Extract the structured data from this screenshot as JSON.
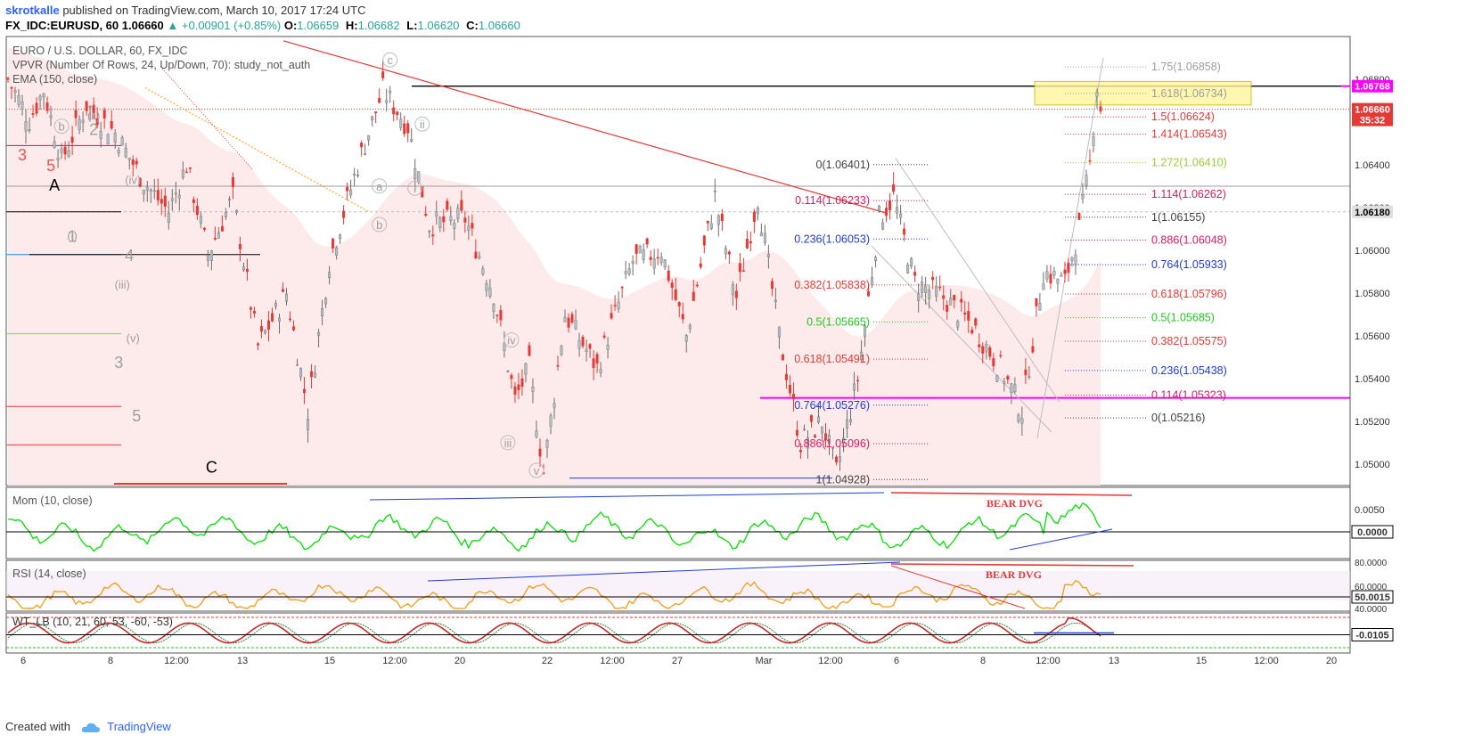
{
  "header": {
    "author": "skrotkalle",
    "published": "published on TradingView.com, March 10, 2017 17:24 UTC",
    "symbol": "FX_IDC:EURUSD, 60",
    "last": "1.06660",
    "change": "+0.00901 (+0.85%)",
    "o_label": "O:",
    "o": "1.06659",
    "h_label": "H:",
    "h": "1.06682",
    "l_label": "L:",
    "l": "1.06620",
    "c_label": "C:",
    "c": "1.06660"
  },
  "legend": {
    "title": "EURO / U.S. DOLLAR, 60, FX_IDC",
    "vpvr": "VPVR (Number Of Rows, 24, Up/Down, 70): study_not_auth",
    "ema": "EMA (150, close)"
  },
  "colors": {
    "up": "#26a69a",
    "down": "#e53935",
    "candle_body_up": "#b0bec5",
    "magenta": "#ff00ff",
    "mom": "#00e000",
    "rsi": "#f39c12",
    "ema_fill": "#fde7e7"
  },
  "chart_data": {
    "type": "candlestick",
    "title": "EURO / U.S. DOLLAR, 60, FX_IDC",
    "price_range": [
      1.049,
      1.07
    ],
    "x_ticks": [
      "6",
      "8",
      "12:00",
      "13",
      "15",
      "12:00",
      "20",
      "22",
      "12:00",
      "27",
      "Mar",
      "12:00",
      "6",
      "8",
      "12:00",
      "13",
      "15",
      "12:00",
      "20"
    ],
    "y_ticks": [
      "1.06800",
      "1.06400",
      "1.06200",
      "1.06000",
      "1.05800",
      "1.05600",
      "1.05400",
      "1.05200",
      "1.05000"
    ],
    "price_badges": [
      {
        "text": "1.06768",
        "value": 1.06768,
        "color": "#ff00ff"
      },
      {
        "text": "1.06660",
        "value": 1.0666,
        "color": "#e53935"
      },
      {
        "text": "35:32",
        "value": 1.0661,
        "color": "#e53935"
      },
      {
        "text": "1.06180",
        "value": 1.0618,
        "color": "#e0e0e0"
      }
    ],
    "price_path": [
      {
        "t": 0,
        "p": 1.068
      },
      {
        "t": 6,
        "p": 1.0661
      },
      {
        "t": 10,
        "p": 1.0675
      },
      {
        "t": 15,
        "p": 1.0642
      },
      {
        "t": 22,
        "p": 1.0668
      },
      {
        "t": 30,
        "p": 1.0655
      },
      {
        "t": 38,
        "p": 1.0632
      },
      {
        "t": 45,
        "p": 1.0618
      },
      {
        "t": 50,
        "p": 1.064
      },
      {
        "t": 56,
        "p": 1.0598
      },
      {
        "t": 63,
        "p": 1.0625
      },
      {
        "t": 70,
        "p": 1.0555
      },
      {
        "t": 78,
        "p": 1.058
      },
      {
        "t": 84,
        "p": 1.0525
      },
      {
        "t": 90,
        "p": 1.0595
      },
      {
        "t": 98,
        "p": 1.064
      },
      {
        "t": 105,
        "p": 1.0675
      },
      {
        "t": 112,
        "p": 1.0658
      },
      {
        "t": 118,
        "p": 1.0612
      },
      {
        "t": 128,
        "p": 1.0615
      },
      {
        "t": 136,
        "p": 1.058
      },
      {
        "t": 142,
        "p": 1.053
      },
      {
        "t": 146,
        "p": 1.0545
      },
      {
        "t": 150,
        "p": 1.0496
      },
      {
        "t": 156,
        "p": 1.057
      },
      {
        "t": 165,
        "p": 1.0545
      },
      {
        "t": 175,
        "p": 1.0595
      },
      {
        "t": 183,
        "p": 1.06
      },
      {
        "t": 190,
        "p": 1.056
      },
      {
        "t": 198,
        "p": 1.0625
      },
      {
        "t": 204,
        "p": 1.0578
      },
      {
        "t": 210,
        "p": 1.0625
      },
      {
        "t": 216,
        "p": 1.056
      },
      {
        "t": 222,
        "p": 1.051
      },
      {
        "t": 228,
        "p": 1.052
      },
      {
        "t": 232,
        "p": 1.0496
      },
      {
        "t": 238,
        "p": 1.054
      },
      {
        "t": 244,
        "p": 1.0615
      },
      {
        "t": 248,
        "p": 1.0625
      },
      {
        "t": 254,
        "p": 1.0585
      },
      {
        "t": 262,
        "p": 1.0578
      },
      {
        "t": 270,
        "p": 1.0565
      },
      {
        "t": 278,
        "p": 1.0545
      },
      {
        "t": 284,
        "p": 1.0525
      },
      {
        "t": 290,
        "p": 1.059
      },
      {
        "t": 296,
        "p": 1.0585
      },
      {
        "t": 300,
        "p": 1.061
      },
      {
        "t": 303,
        "p": 1.064
      },
      {
        "t": 305,
        "p": 1.0677
      },
      {
        "t": 306,
        "p": 1.0666
      }
    ],
    "fib_left": [
      {
        "label": "0(1.06401)",
        "value": 1.06401,
        "color": "#424242"
      },
      {
        "label": "0.114(1.06233)",
        "value": 1.06233,
        "color": "#d81b60"
      },
      {
        "label": "0.236(1.06053)",
        "value": 1.06053,
        "color": "#1e3bd6"
      },
      {
        "label": "0.382(1.05838)",
        "value": 1.05838,
        "color": "#e53935"
      },
      {
        "label": "0.5(1.05665)",
        "value": 1.05665,
        "color": "#1ec81e"
      },
      {
        "label": "0.618(1.05491)",
        "value": 1.05491,
        "color": "#e53935"
      },
      {
        "label": "0.764(1.05276)",
        "value": 1.05276,
        "color": "#1e3bd6"
      },
      {
        "label": "0.886(1.05096)",
        "value": 1.05096,
        "color": "#d81b60"
      },
      {
        "label": "1(1.04928)",
        "value": 1.04928,
        "color": "#424242"
      }
    ],
    "fib_right": [
      {
        "label": "1.75(1.06858)",
        "value": 1.06858,
        "color": "#9e9e9e"
      },
      {
        "label": "1.618(1.06734)",
        "value": 1.06734,
        "color": "#9e9e9e"
      },
      {
        "label": "1.5(1.06624)",
        "value": 1.06624,
        "color": "#e53935"
      },
      {
        "label": "1.414(1.06543)",
        "value": 1.06543,
        "color": "#e53935"
      },
      {
        "label": "1.272(1.06410)",
        "value": 1.0641,
        "color": "#9acd32"
      },
      {
        "label": "1.114(1.06262)",
        "value": 1.06262,
        "color": "#d81b60"
      },
      {
        "label": "1(1.06155)",
        "value": 1.06155,
        "color": "#424242"
      },
      {
        "label": "0.886(1.06048)",
        "value": 1.06048,
        "color": "#d81b60"
      },
      {
        "label": "0.764(1.05933)",
        "value": 1.05933,
        "color": "#1e3bd6"
      },
      {
        "label": "0.618(1.05796)",
        "value": 1.05796,
        "color": "#e53935"
      },
      {
        "label": "0.5(1.05685)",
        "value": 1.05685,
        "color": "#1ec81e"
      },
      {
        "label": "0.382(1.05575)",
        "value": 1.05575,
        "color": "#e53935"
      },
      {
        "label": "0.236(1.05438)",
        "value": 1.05438,
        "color": "#1e3bd6"
      },
      {
        "label": "0.114(1.05323)",
        "value": 1.05323,
        "color": "#d81b60"
      },
      {
        "label": "0(1.05216)",
        "value": 1.05216,
        "color": "#424242"
      }
    ],
    "wave_labels": [
      {
        "text": "3",
        "t": 4,
        "p": 1.0642,
        "color": "#ef5350"
      },
      {
        "text": "5",
        "t": 12,
        "p": 1.0637,
        "color": "#ef5350"
      },
      {
        "text": "A",
        "t": 13,
        "p": 1.0628,
        "color": "#000000"
      },
      {
        "text": "2",
        "t": 24,
        "p": 1.0654,
        "color": "#9e9e9e"
      },
      {
        "text": "1",
        "t": 18,
        "p": 1.0604,
        "color": "#9e9e9e"
      },
      {
        "text": "4",
        "t": 34,
        "p": 1.0595,
        "color": "#9e9e9e"
      },
      {
        "text": "3",
        "t": 31,
        "p": 1.0545,
        "color": "#9e9e9e"
      },
      {
        "text": "5",
        "t": 36,
        "p": 1.052,
        "color": "#9e9e9e"
      },
      {
        "text": "C",
        "t": 57,
        "p": 1.0496,
        "color": "#000000"
      }
    ],
    "wave_sublabels": [
      "(i)",
      "(ii)",
      "(iii)",
      "(iv)",
      "(v)",
      "b",
      "c",
      "a",
      "b",
      "i",
      "ii",
      "iii",
      "iv",
      "v"
    ],
    "mom": {
      "title": "Mom (10, close)",
      "y_ticks": [
        "0.0050",
        "0.0000"
      ],
      "badge": "0.0000",
      "annotation": "BEAR DVG"
    },
    "rsi": {
      "title": "RSI (14, close)",
      "y_ticks": [
        "80.0000",
        "60.0000",
        "40.0000"
      ],
      "badge": "50.0015",
      "annotation": "BEAR DVG"
    },
    "wt": {
      "title": "WT_LB (10, 21, 60, 53, -60, -53)",
      "badge": "-0.0105"
    }
  },
  "footer": {
    "created": "Created with",
    "brand": "TradingView"
  }
}
